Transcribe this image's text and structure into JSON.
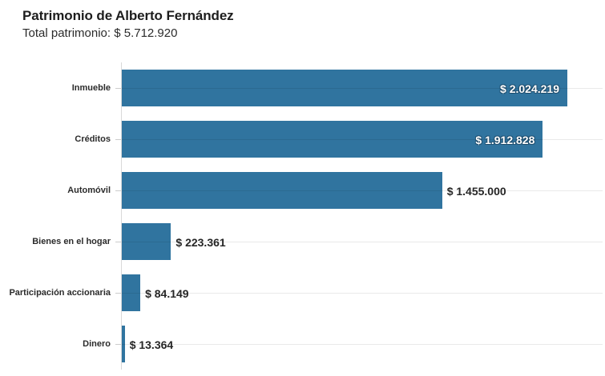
{
  "header": {
    "title": "Patrimonio de Alberto Fernández",
    "subtitle": "Total patrimonio: $ 5.712.920"
  },
  "colors": {
    "bar": "#30749F",
    "title_text": "#1d1d1d",
    "category_text": "#2b2b2b",
    "value_outside_text": "#262626",
    "value_inside_text": "#ffffff",
    "axis_line": "#d9d9d9",
    "tick": "#cccccc"
  },
  "chart_data": {
    "type": "bar",
    "orientation": "horizontal",
    "title": "Patrimonio de Alberto Fernández",
    "subtitle": "Total patrimonio: $ 5.712.920",
    "categories": [
      "Inmueble",
      "Créditos",
      "Automóvil",
      "Bienes en el hogar",
      "Participación accionaria",
      "Dinero"
    ],
    "values": [
      2024219,
      1912828,
      1455000,
      223361,
      84149,
      13364
    ],
    "value_labels": [
      "$ 2.024.219",
      "$ 1.912.828",
      "$ 1.455.000",
      "$ 223.361",
      "$ 84.149",
      "$ 13.364"
    ],
    "label_inside": [
      true,
      true,
      false,
      false,
      false,
      false
    ],
    "total": 5712920,
    "xlabel": "",
    "ylabel": "",
    "xlim": [
      0,
      2200000
    ],
    "grid": true,
    "legend": false
  }
}
